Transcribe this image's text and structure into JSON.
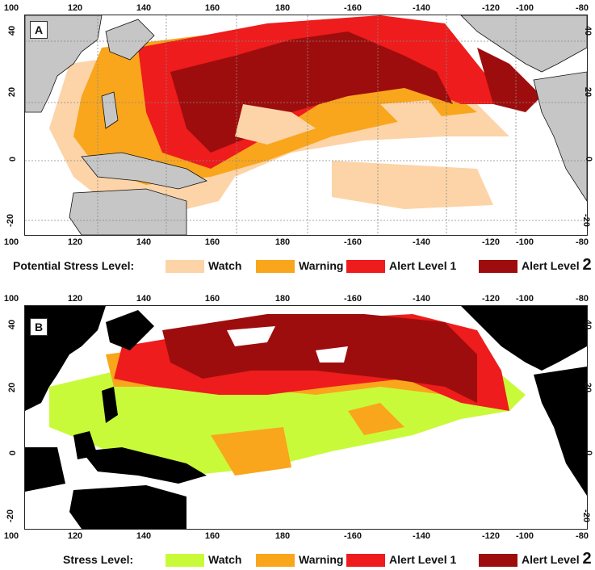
{
  "panels": [
    {
      "letter": "A",
      "legend_title": "Potential Stress Level:",
      "palette": "peach"
    },
    {
      "letter": "B",
      "legend_title": "Stress Level:",
      "palette": "lime"
    }
  ],
  "lon_ticks": [
    "100",
    "120",
    "140",
    "160",
    "180",
    "-160",
    "-140",
    "-120",
    "-100",
    "-80"
  ],
  "lat_ticks": [
    "40",
    "20",
    "0",
    "-20"
  ],
  "legend_a": [
    {
      "label": "Watch",
      "color": "#fcd4a8"
    },
    {
      "label": "Warning",
      "color": "#f9a61c"
    },
    {
      "label": "Alert Level 1",
      "color": "#ee1c1c"
    },
    {
      "label": "Alert Level ",
      "suffix": "2",
      "color": "#9e0d0d"
    }
  ],
  "legend_b": [
    {
      "label": "Watch",
      "color": "#c9fa3a"
    },
    {
      "label": "Warning",
      "color": "#f9a61c"
    },
    {
      "label": "Alert Level 1",
      "color": "#ee1c1c"
    },
    {
      "label": "Alert Level ",
      "suffix": "2",
      "color": "#9e0d0d"
    }
  ],
  "colors": {
    "land_a": "#c6c6c6",
    "land_b": "#000000",
    "ocean": "#ffffff",
    "grid": "#888888"
  }
}
